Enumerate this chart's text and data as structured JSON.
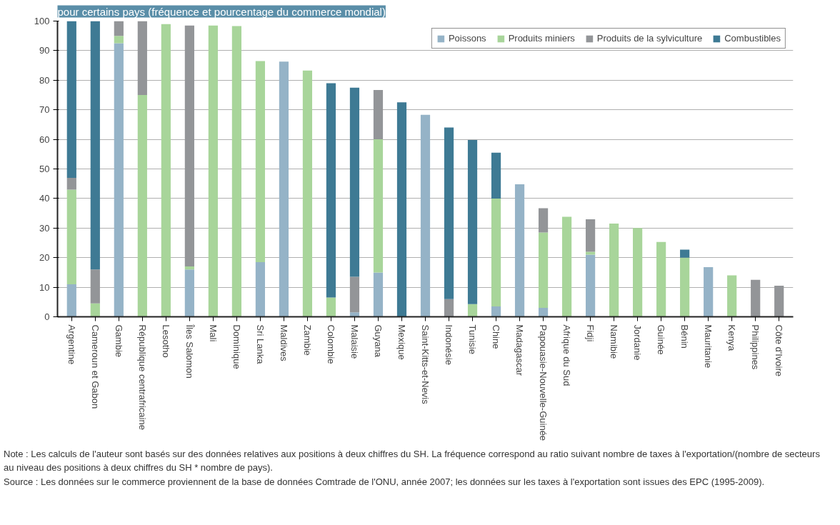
{
  "chart_data": {
    "type": "bar",
    "stacked": true,
    "title": "pour certains pays (fréquence et pourcentage du commerce mondial)",
    "categories": [
      "Argentine",
      "Cameroun et Gabon",
      "Gambie",
      "République centrafricaine",
      "Lesotho",
      "Îles Salomon",
      "Mali",
      "Dominique",
      "Sri Lanka",
      "Maldives",
      "Zambie",
      "Colombie",
      "Malaisie",
      "Guyana",
      "Mexique",
      "Saint-Kitts-et-Nevis",
      "Indonésie",
      "Tunisie",
      "Chine",
      "Madagascar",
      "Papouasie-Nouvelle-Guinée",
      "Afrique du Sud",
      "Fidji",
      "Namibie",
      "Jordanie",
      "Guinée",
      "Bénin",
      "Mauritanie",
      "Kenya",
      "Philippines",
      "Côte d'Ivoire"
    ],
    "series": [
      {
        "name": "Poissons",
        "color": "#95b3c7",
        "values": [
          11,
          0,
          92.5,
          0,
          0,
          16,
          0,
          0,
          18.5,
          86.3,
          0,
          0,
          1.5,
          15,
          0,
          68.3,
          0,
          0,
          3.5,
          44.8,
          3,
          0,
          21,
          0,
          0,
          0,
          0,
          16.8,
          0,
          0,
          0
        ]
      },
      {
        "name": "Produits miniers",
        "color": "#a8d59a",
        "values": [
          32,
          4.5,
          2.5,
          75,
          99,
          1,
          98.5,
          98.3,
          68,
          0,
          83.3,
          6.5,
          0,
          45,
          0,
          0,
          0,
          4.3,
          36.5,
          0,
          25.5,
          33.8,
          1,
          31.5,
          30,
          25.3,
          20,
          0,
          14,
          0,
          0
        ]
      },
      {
        "name": "Produits de la sylviculture",
        "color": "#939598",
        "values": [
          4,
          11.5,
          5,
          25,
          0,
          81.5,
          0,
          0,
          0,
          0,
          0,
          0,
          12,
          16.7,
          0,
          0,
          6,
          0,
          0,
          0,
          8.2,
          0,
          11,
          0,
          0,
          0,
          0,
          0,
          0,
          12.5,
          10.5
        ]
      },
      {
        "name": "Combustibles",
        "color": "#3e7a94",
        "values": [
          53,
          84,
          0,
          0,
          0,
          0,
          0,
          0,
          0,
          0,
          0,
          72.5,
          64,
          0,
          72.5,
          0,
          58,
          55.5,
          15.5,
          0,
          0,
          0,
          0,
          0,
          0,
          0,
          2.7,
          0,
          0,
          0,
          0
        ]
      }
    ],
    "ylim": [
      0,
      100
    ],
    "yticks": [
      0,
      10,
      20,
      30,
      40,
      50,
      60,
      70,
      80,
      90,
      100
    ],
    "grid": "y",
    "legend": "top right",
    "annotations": [
      "Note : Les calculs de l'auteur sont basés sur des données relatives aux positions à deux chiffres du SH. La fréquence correspond au ratio suivant nombre de taxes à l'exportation/(nombre de secteurs au niveau des positions à deux chiffres du SH * nombre de pays).",
      "Source : Les données sur le commerce proviennent de la base de données Comtrade de l'ONU, année 2007; les données sur les taxes à l'exportation sont issues des EPC (1995-2009)."
    ]
  }
}
